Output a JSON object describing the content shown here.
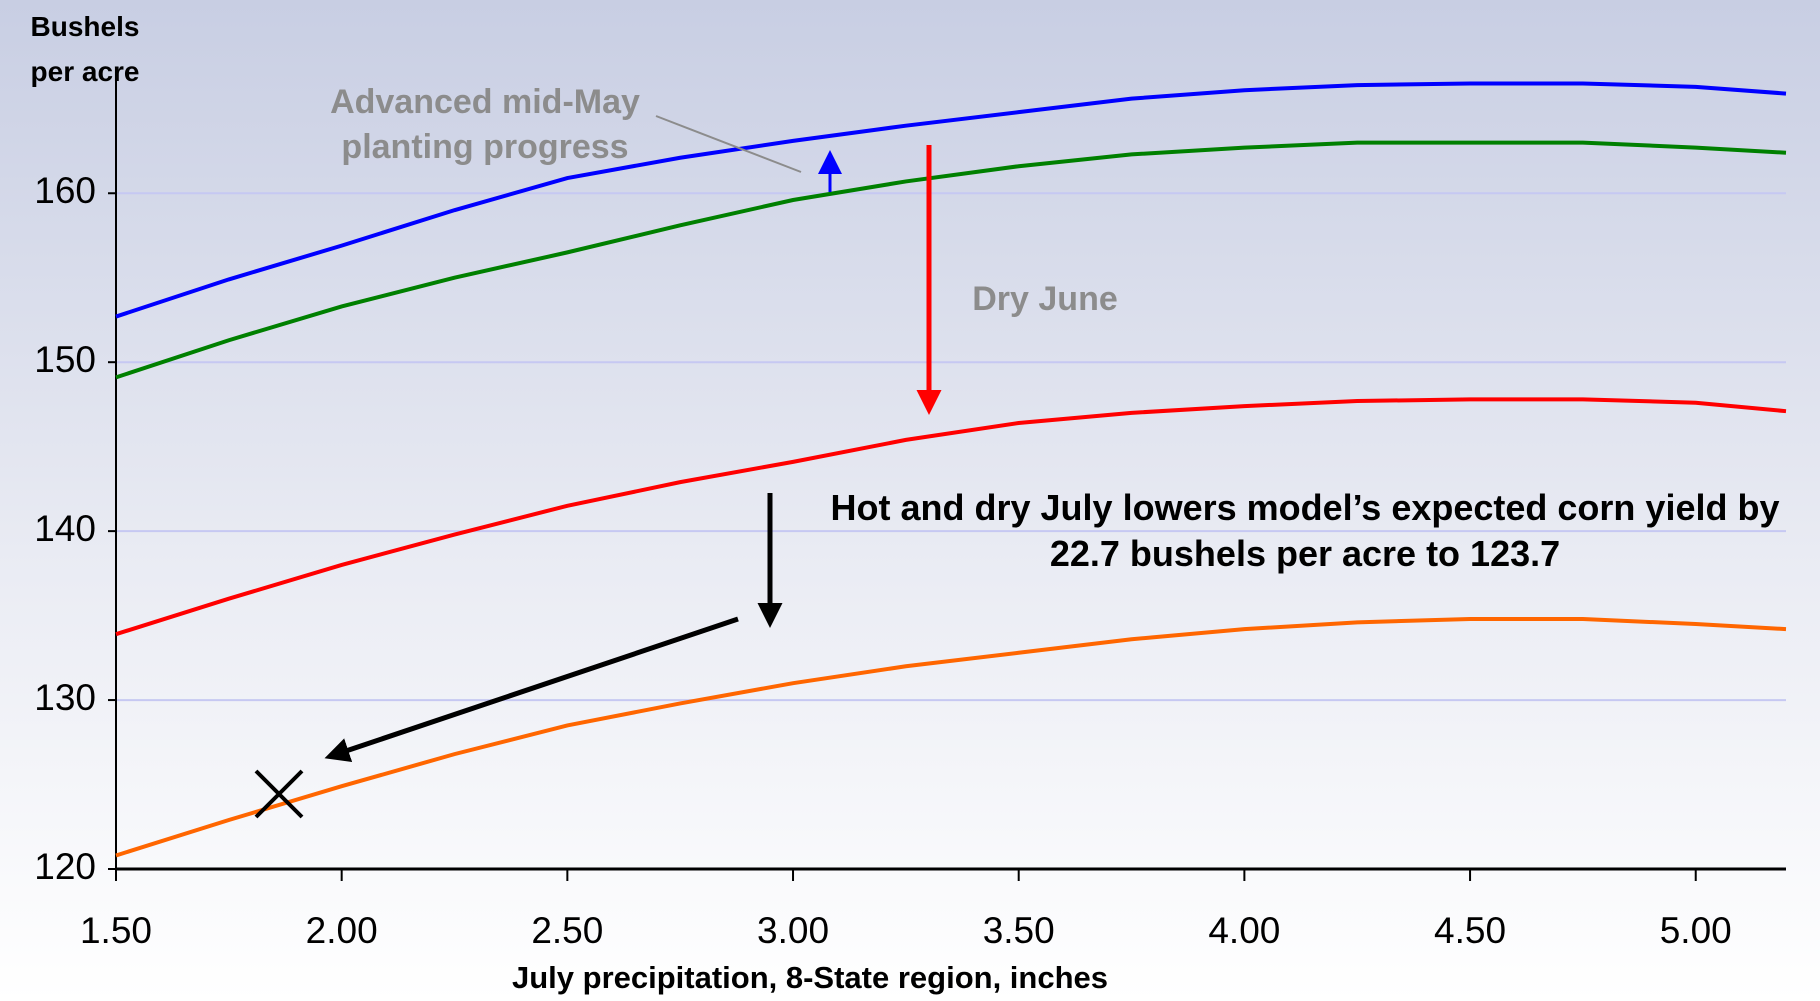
{
  "chart_data": {
    "type": "line",
    "y_label": "Bushels per acre",
    "x_label": "July precipitation, 8-State region, inches",
    "x": [
      1.5,
      1.75,
      2.0,
      2.25,
      2.5,
      2.75,
      3.0,
      3.25,
      3.5,
      3.75,
      4.0,
      4.25,
      4.5,
      4.75,
      5.0,
      5.2
    ],
    "series": [
      {
        "color": "#0000ff",
        "values": [
          152.7,
          154.9,
          156.9,
          159.0,
          160.9,
          162.1,
          163.1,
          164.0,
          164.8,
          165.6,
          166.1,
          166.4,
          166.5,
          166.5,
          166.3,
          165.9
        ]
      },
      {
        "color": "#008000",
        "values": [
          149.1,
          151.3,
          153.3,
          155.0,
          156.5,
          158.1,
          159.6,
          160.7,
          161.6,
          162.3,
          162.7,
          163.0,
          163.0,
          163.0,
          162.7,
          162.4
        ]
      },
      {
        "color": "#ff0000",
        "values": [
          133.9,
          136.0,
          138.0,
          139.8,
          141.5,
          142.9,
          144.1,
          145.4,
          146.4,
          147.0,
          147.4,
          147.7,
          147.8,
          147.8,
          147.6,
          147.1
        ]
      },
      {
        "color": "#ff6600",
        "values": [
          120.8,
          122.9,
          124.9,
          126.8,
          128.5,
          129.8,
          131.0,
          132.0,
          132.8,
          133.6,
          134.2,
          134.6,
          134.8,
          134.8,
          134.5,
          134.2
        ]
      }
    ],
    "xlim": [
      1.5,
      5.2
    ],
    "ylim": [
      120,
      167
    ],
    "xticks": [
      {
        "value": 1.5,
        "label": "1.50"
      },
      {
        "value": 2.0,
        "label": "2.00"
      },
      {
        "value": 2.5,
        "label": "2.50"
      },
      {
        "value": 3.0,
        "label": "3.00"
      },
      {
        "value": 3.5,
        "label": "3.50"
      },
      {
        "value": 4.0,
        "label": "4.00"
      },
      {
        "value": 4.5,
        "label": "4.50"
      },
      {
        "value": 5.0,
        "label": "5.00"
      }
    ],
    "yticks": [
      120,
      130,
      140,
      150,
      160
    ],
    "grid": true,
    "annotations": [
      "Advanced mid-May planting progress",
      "Dry June",
      "Hot and dry July lowers model’s expected corn yield by 22.7 bushels per acre to 123.7"
    ]
  }
}
